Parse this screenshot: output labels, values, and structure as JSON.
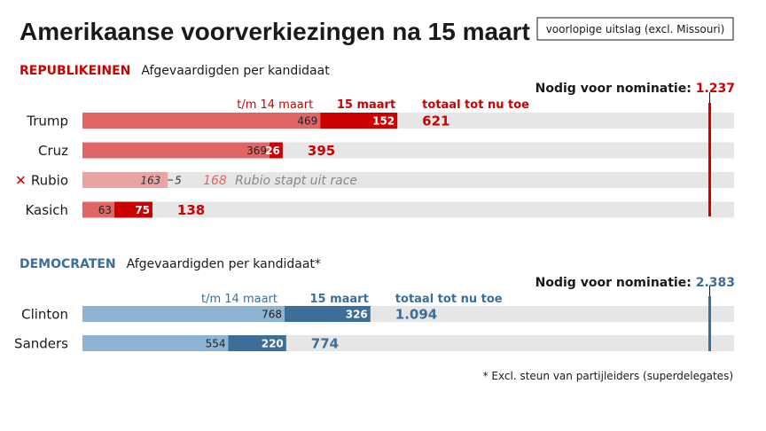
{
  "title": "Amerikaanse voorverkiezingen na 15 maart",
  "badge": "voorlopige uitslag (excl. Missouri)",
  "colors": {
    "rep_prev": "#e06666",
    "rep_new": "#cc0000",
    "rep_dropped": "#e8a3a3",
    "rep_dropped_text": "#e06666",
    "dem_prev": "#8fb3d3",
    "dem_new": "#3d6e99",
    "track": "#e6e6e6"
  },
  "chart_data": [
    {
      "type": "bar",
      "party": "REPUBLIKEINEN",
      "subtitle": "Afgevaardigden per kandidaat",
      "columns": {
        "before": "t/m 14 maart",
        "march15": "15 maart",
        "total": "totaal tot nu toe"
      },
      "threshold_label": "Nodig voor nominatie:",
      "threshold_value": "1.237",
      "threshold": 1237,
      "categories": [
        "Trump",
        "Cruz",
        "Rubio",
        "Kasich"
      ],
      "series": [
        {
          "name": "t/m 14 maart",
          "values": [
            469,
            369,
            163,
            63
          ]
        },
        {
          "name": "15 maart",
          "values": [
            152,
            26,
            5,
            75
          ]
        }
      ],
      "totals": [
        "621",
        "395",
        "168",
        "138"
      ],
      "rows": [
        {
          "name": "Trump",
          "before": 469,
          "march15": 152,
          "before_label": "469",
          "march15_label": "152",
          "total_label": "621"
        },
        {
          "name": "Cruz",
          "before": 369,
          "march15": 26,
          "before_label": "369",
          "march15_label": "26",
          "total_label": "395"
        },
        {
          "name": "Rubio",
          "before": 163,
          "march15": 5,
          "before_label": "163",
          "march15_label": "5",
          "total_label": "168",
          "dropped": true,
          "marker": "✕",
          "dropped_note": "Rubio stapt uit race"
        },
        {
          "name": "Kasich",
          "before": 63,
          "march15": 75,
          "before_label": "63",
          "march15_label": "75",
          "total_label": "138"
        }
      ]
    },
    {
      "type": "bar",
      "party": "DEMOCRATEN",
      "subtitle": "Afgevaardigden per kandidaat*",
      "columns": {
        "before": "t/m 14 maart",
        "march15": "15 maart",
        "total": "totaal tot nu toe"
      },
      "threshold_label": "Nodig voor nominatie:",
      "threshold_value": "2.383",
      "threshold": 2383,
      "categories": [
        "Clinton",
        "Sanders"
      ],
      "series": [
        {
          "name": "t/m 14 maart",
          "values": [
            768,
            554
          ]
        },
        {
          "name": "15 maart",
          "values": [
            326,
            220
          ]
        }
      ],
      "totals": [
        "1.094",
        "774"
      ],
      "rows": [
        {
          "name": "Clinton",
          "before": 768,
          "march15": 326,
          "before_label": "768",
          "march15_label": "326",
          "total_label": "1.094"
        },
        {
          "name": "Sanders",
          "before": 554,
          "march15": 220,
          "before_label": "554",
          "march15_label": "220",
          "total_label": "774"
        }
      ]
    }
  ],
  "footnote": "* Excl. steun van partijleiders (superdelegates)"
}
